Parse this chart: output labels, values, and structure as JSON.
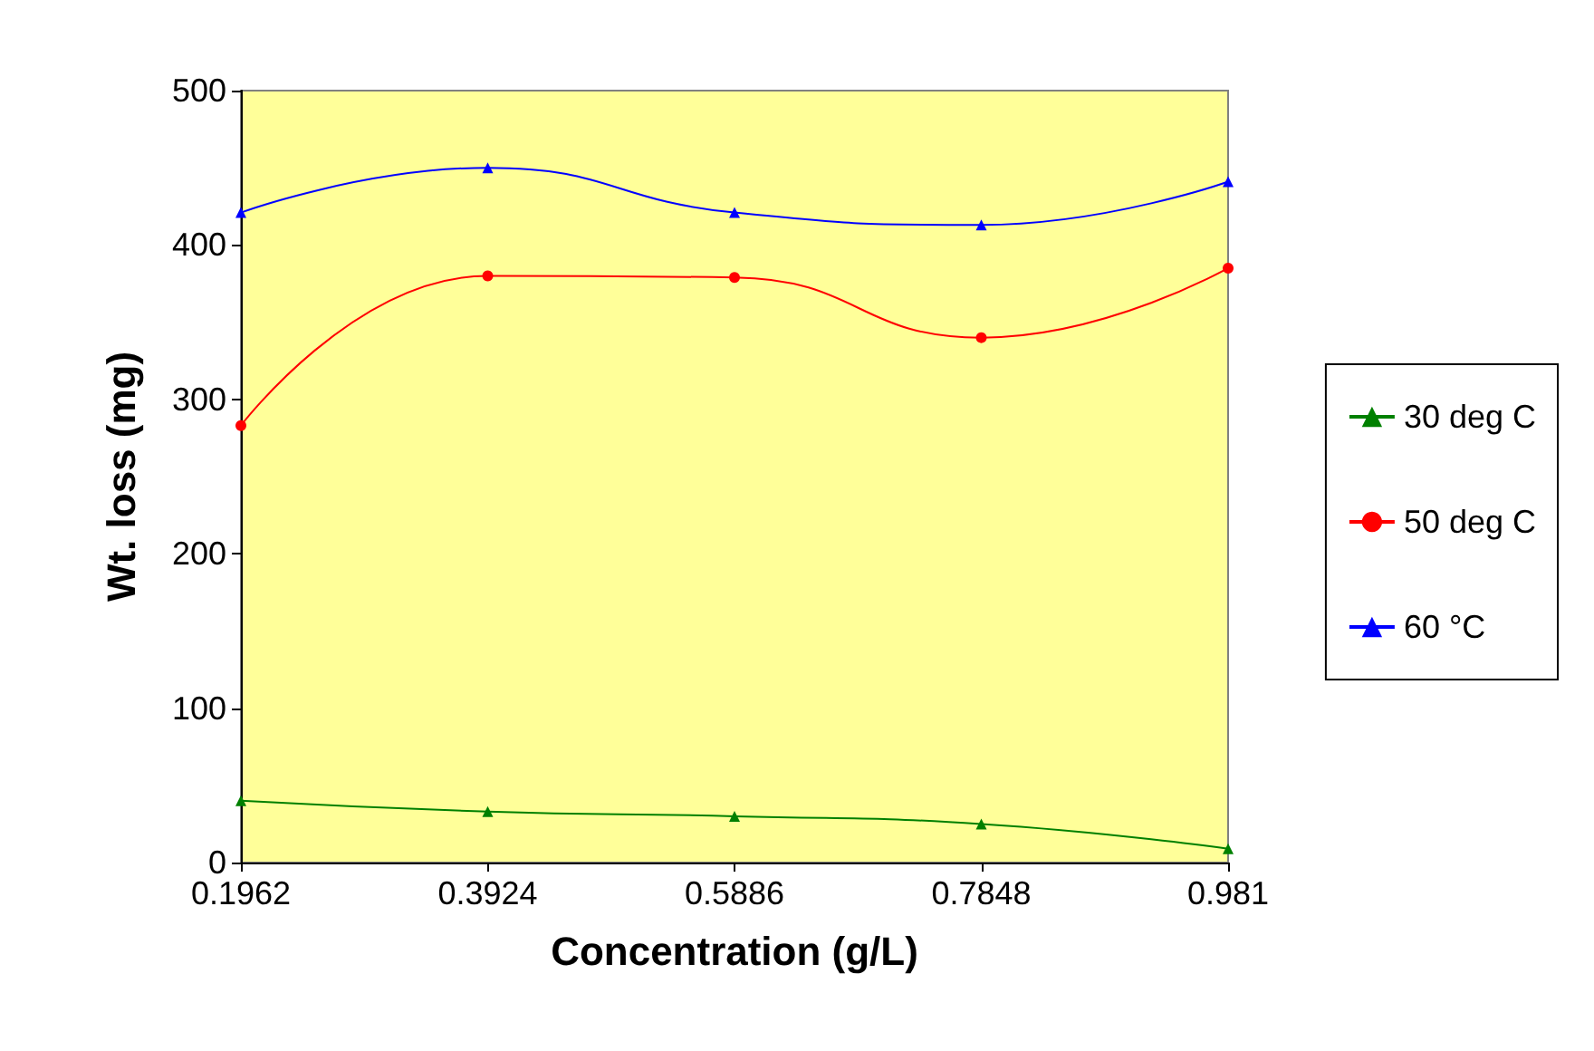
{
  "chart_data": {
    "type": "line",
    "xlabel": "Concentration (g/L)",
    "ylabel": "Wt. loss (mg)",
    "x": [
      0.1962,
      0.3924,
      0.5886,
      0.7848,
      0.981
    ],
    "xlim": [
      0.1962,
      0.981
    ],
    "xticks": [
      0.1962,
      0.3924,
      0.5886,
      0.7848,
      0.981
    ],
    "ylim": [
      0,
      500
    ],
    "yticks": [
      0,
      100,
      200,
      300,
      400,
      500
    ],
    "grid": false,
    "legend": "right",
    "series": [
      {
        "name": "30 deg C",
        "color": "#008000",
        "marker": "triangle",
        "values": [
          40,
          33,
          30,
          25,
          9
        ]
      },
      {
        "name": "50 deg C",
        "color": "#ff0000",
        "marker": "circle",
        "values": [
          283,
          380,
          379,
          340,
          385
        ]
      },
      {
        "name": "60 °C",
        "color": "#0000ff",
        "marker": "triangle",
        "values": [
          421,
          450,
          421,
          413,
          441
        ]
      }
    ]
  }
}
